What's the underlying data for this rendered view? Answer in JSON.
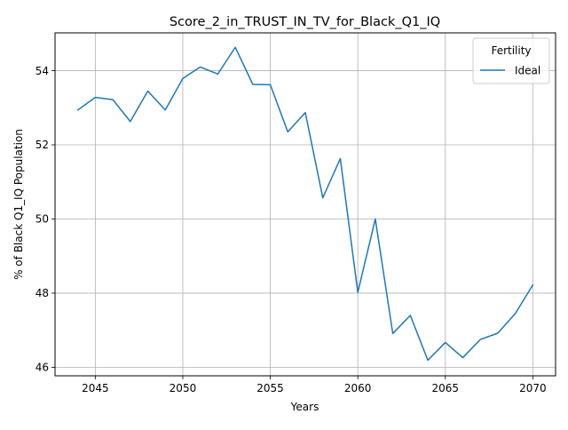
{
  "chart_data": {
    "type": "line",
    "title": "Score_2_in_TRUST_IN_TV_for_Black_Q1_IQ",
    "xlabel": "Years",
    "ylabel": "% of Black Q1_IQ Population",
    "xlim": [
      2042.7,
      2071.3
    ],
    "ylim": [
      45.77,
      55.02
    ],
    "x_ticks": [
      2045,
      2050,
      2055,
      2060,
      2065,
      2070
    ],
    "y_ticks": [
      46,
      48,
      50,
      52,
      54
    ],
    "grid": true,
    "legend": {
      "title": "Fertility",
      "placement": "top-right"
    },
    "series": [
      {
        "name": "Ideal",
        "color": "#1f77b4",
        "x": [
          2044,
          2045,
          2046,
          2047,
          2048,
          2049,
          2050,
          2051,
          2052,
          2053,
          2054,
          2055,
          2056,
          2057,
          2058,
          2059,
          2060,
          2061,
          2062,
          2063,
          2064,
          2065,
          2066,
          2067,
          2068,
          2069,
          2070
        ],
        "values": [
          52.94,
          53.28,
          53.22,
          52.63,
          53.45,
          52.94,
          53.79,
          54.1,
          53.91,
          54.63,
          53.63,
          53.62,
          52.35,
          52.87,
          50.57,
          51.63,
          48.02,
          50.0,
          46.91,
          47.4,
          46.19,
          46.67,
          46.26,
          46.75,
          46.92,
          47.45,
          48.22
        ]
      }
    ]
  }
}
